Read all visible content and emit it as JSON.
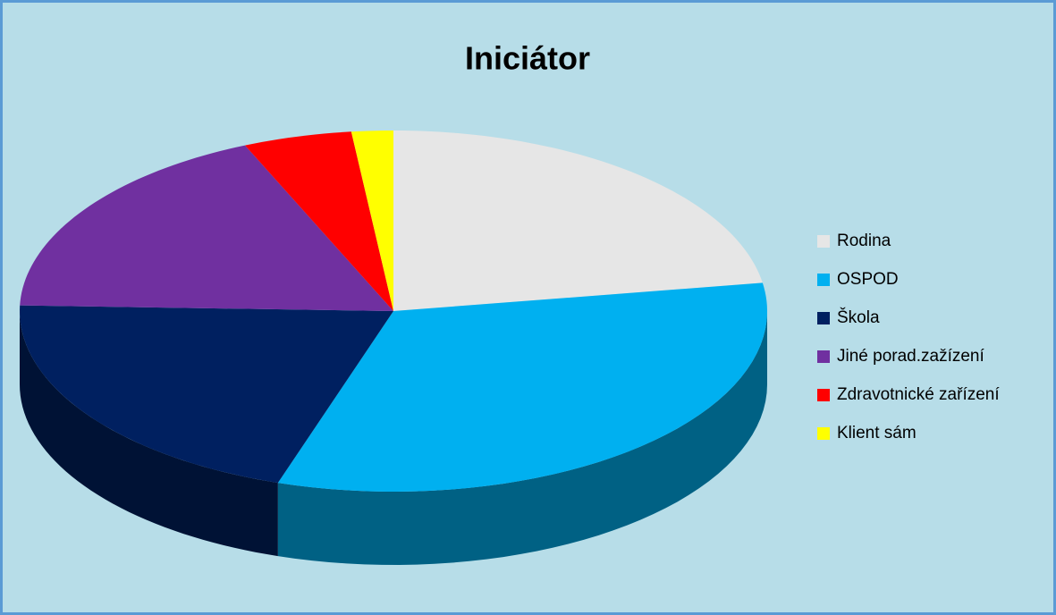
{
  "chart_data": {
    "type": "pie",
    "title": "Iniciátor",
    "categories": [
      "Rodina",
      "OSPOD",
      "Škola",
      "Jiné porad.zažízení",
      "Zdravotnické zařízení",
      "Klient sám"
    ],
    "values": [
      22.5,
      32.5,
      20.5,
      18,
      4.7,
      1.8
    ],
    "colors": [
      "#e6e6e6",
      "#00b0f0",
      "#002060",
      "#7030a0",
      "#ff0000",
      "#ffff00"
    ],
    "legend": "right"
  }
}
